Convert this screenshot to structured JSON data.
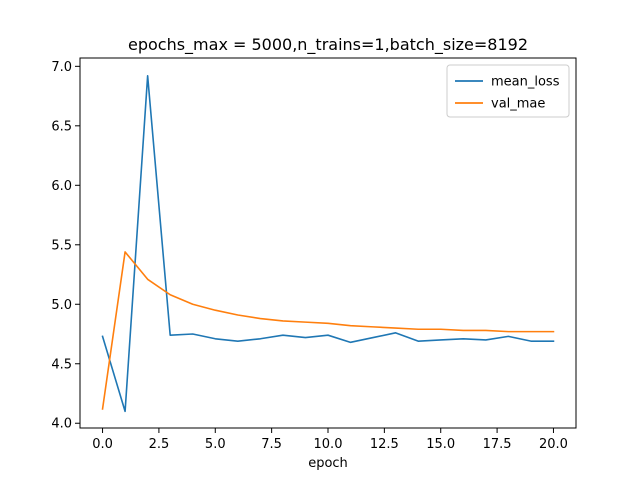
{
  "chart_data": {
    "type": "line",
    "title": "epochs_max = 5000,n_trains=1,batch_size=8192",
    "xlabel": "epoch",
    "ylabel": "",
    "xlim": [
      -1,
      21
    ],
    "ylim": [
      3.96,
      7.07
    ],
    "x": [
      0,
      1,
      2,
      3,
      4,
      5,
      6,
      7,
      8,
      9,
      10,
      11,
      12,
      13,
      14,
      15,
      16,
      17,
      18,
      19,
      20
    ],
    "x_ticks": [
      0.0,
      2.5,
      5.0,
      7.5,
      10.0,
      12.5,
      15.0,
      17.5,
      20.0
    ],
    "x_tick_labels": [
      "0.0",
      "2.5",
      "5.0",
      "7.5",
      "10.0",
      "12.5",
      "15.0",
      "17.5",
      "20.0"
    ],
    "y_ticks": [
      4.0,
      4.5,
      5.0,
      5.5,
      6.0,
      6.5,
      7.0
    ],
    "y_tick_labels": [
      "4.0",
      "4.5",
      "5.0",
      "5.5",
      "6.0",
      "6.5",
      "7.0"
    ],
    "grid": false,
    "legend_position": "top-right",
    "series": [
      {
        "name": "mean_loss",
        "color": "#1f77b4",
        "values": [
          4.73,
          4.1,
          6.92,
          4.74,
          4.75,
          4.71,
          4.69,
          4.71,
          4.74,
          4.72,
          4.74,
          4.68,
          4.72,
          4.76,
          4.69,
          4.7,
          4.71,
          4.7,
          4.73,
          4.69,
          4.69
        ]
      },
      {
        "name": "val_mae",
        "color": "#ff7f0e",
        "values": [
          4.12,
          5.44,
          5.21,
          5.08,
          5.0,
          4.95,
          4.91,
          4.88,
          4.86,
          4.85,
          4.84,
          4.82,
          4.81,
          4.8,
          4.79,
          4.79,
          4.78,
          4.78,
          4.77,
          4.77,
          4.77
        ]
      }
    ]
  }
}
